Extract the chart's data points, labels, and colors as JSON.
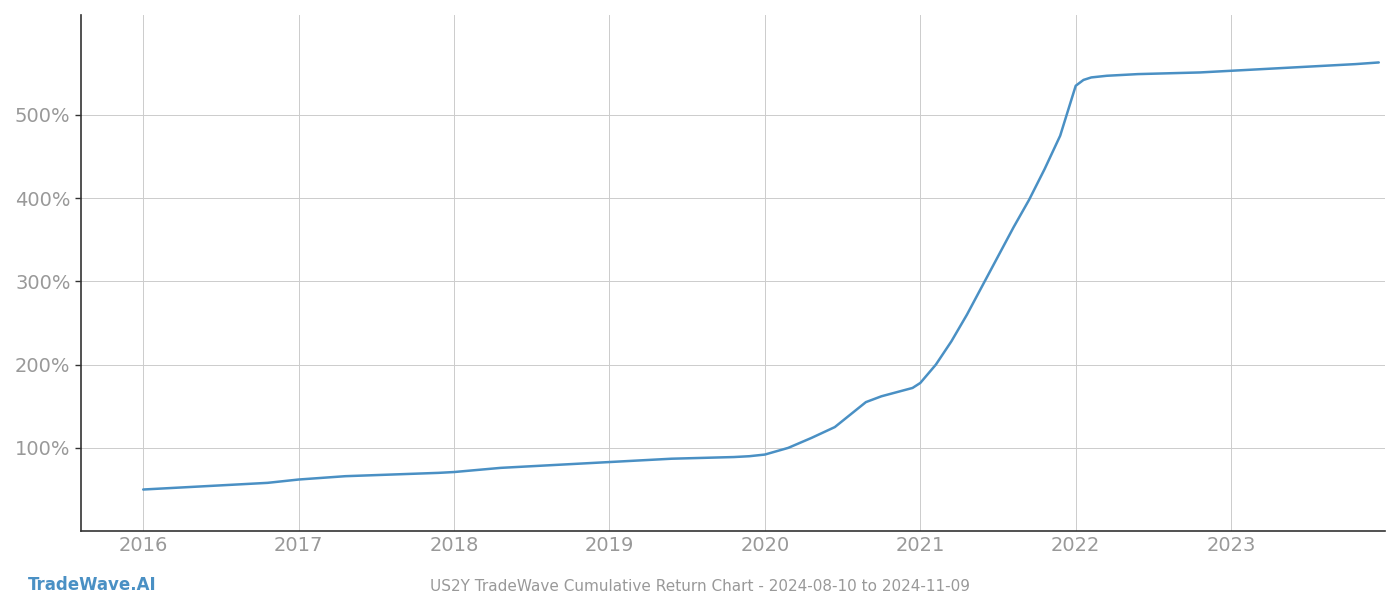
{
  "title": "US2Y TradeWave Cumulative Return Chart - 2024-08-10 to 2024-11-09",
  "watermark": "TradeWave.AI",
  "line_color": "#4a90c4",
  "background_color": "#ffffff",
  "grid_color": "#cccccc",
  "x_years": [
    2016,
    2017,
    2018,
    2019,
    2020,
    2021,
    2022,
    2023
  ],
  "data_points": {
    "2016.0": 50,
    "2016.2": 52,
    "2016.5": 55,
    "2016.8": 58,
    "2017.0": 62,
    "2017.3": 66,
    "2017.6": 68,
    "2017.9": 70,
    "2018.0": 71,
    "2018.3": 76,
    "2018.6": 79,
    "2018.9": 82,
    "2019.0": 83,
    "2019.2": 85,
    "2019.4": 87,
    "2019.6": 88,
    "2019.8": 89,
    "2019.9": 90,
    "2020.0": 92,
    "2020.15": 100,
    "2020.3": 112,
    "2020.45": 125,
    "2020.55": 140,
    "2020.65": 155,
    "2020.75": 162,
    "2020.85": 167,
    "2020.95": 172,
    "2021.0": 178,
    "2021.1": 200,
    "2021.2": 228,
    "2021.3": 260,
    "2021.4": 295,
    "2021.5": 330,
    "2021.6": 365,
    "2021.7": 398,
    "2021.8": 435,
    "2021.9": 475,
    "2021.95": 505,
    "2022.0": 535,
    "2022.05": 542,
    "2022.1": 545,
    "2022.2": 547,
    "2022.4": 549,
    "2022.6": 550,
    "2022.8": 551,
    "2023.0": 553,
    "2023.2": 555,
    "2023.4": 557,
    "2023.6": 559,
    "2023.8": 561,
    "2023.95": 563
  },
  "ylim_min": 0,
  "ylim_max": 620,
  "yticks": [
    100,
    200,
    300,
    400,
    500
  ],
  "xlim_min": 2015.6,
  "xlim_max": 2023.99,
  "title_fontsize": 11,
  "watermark_fontsize": 12,
  "tick_label_color": "#999999",
  "tick_label_size": 14
}
